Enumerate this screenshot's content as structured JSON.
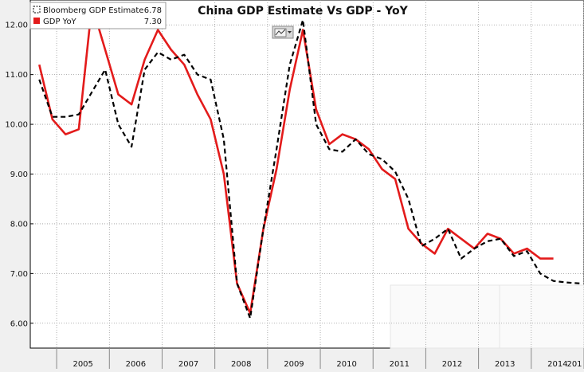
{
  "chart_data": {
    "type": "line",
    "title": "China GDP Estimate Vs GDP - YoY",
    "xlabel": "",
    "ylabel": "",
    "ylim": [
      5.5,
      12.5
    ],
    "xlim": [
      2004.5,
      2015.0
    ],
    "y_ticks": [
      "6.00",
      "7.00",
      "8.00",
      "9.00",
      "10.00",
      "11.00",
      "12.00"
    ],
    "x_ticks": [
      "2005",
      "2006",
      "2007",
      "2008",
      "2009",
      "2010",
      "2011",
      "2012",
      "2013",
      "2014",
      "201"
    ],
    "grid": true,
    "legend_position": "top-left",
    "series": [
      {
        "name": "Bloomberg GDP Estimate",
        "last_value": "6.78",
        "style": "dashed",
        "color": "#000000",
        "x": [
          2004.67,
          2004.92,
          2005.17,
          2005.42,
          2005.67,
          2005.92,
          2006.17,
          2006.42,
          2006.67,
          2006.92,
          2007.17,
          2007.42,
          2007.67,
          2007.92,
          2008.17,
          2008.42,
          2008.67,
          2008.92,
          2009.17,
          2009.42,
          2009.67,
          2009.92,
          2010.17,
          2010.42,
          2010.67,
          2010.92,
          2011.17,
          2011.42,
          2011.67,
          2011.92,
          2012.17,
          2012.42,
          2012.67,
          2012.92,
          2013.17,
          2013.42,
          2013.67,
          2013.92,
          2014.17,
          2014.42,
          2014.67,
          2014.92
        ],
        "values": [
          10.9,
          10.15,
          10.15,
          10.2,
          10.65,
          11.1,
          10.0,
          9.55,
          11.1,
          11.45,
          11.3,
          11.4,
          11.0,
          10.9,
          9.7,
          6.8,
          6.1,
          7.9,
          9.5,
          11.2,
          12.1,
          10.0,
          9.5,
          9.45,
          9.7,
          9.4,
          9.3,
          9.05,
          8.5,
          7.55,
          7.7,
          7.9,
          7.3,
          7.5,
          7.65,
          7.7,
          7.35,
          7.45,
          7.0,
          6.85,
          6.82,
          6.8
        ]
      },
      {
        "name": "GDP YoY",
        "last_value": "7.30",
        "style": "solid",
        "color": "#e31b1b",
        "x": [
          2004.67,
          2004.92,
          2005.17,
          2005.42,
          2005.67,
          2005.92,
          2006.17,
          2006.42,
          2006.67,
          2006.92,
          2007.17,
          2007.42,
          2007.67,
          2007.92,
          2008.17,
          2008.42,
          2008.67,
          2008.92,
          2009.17,
          2009.42,
          2009.67,
          2009.92,
          2010.17,
          2010.42,
          2010.67,
          2010.92,
          2011.17,
          2011.42,
          2011.67,
          2011.92,
          2012.17,
          2012.42,
          2012.67,
          2012.92,
          2013.17,
          2013.42,
          2013.67,
          2013.92,
          2014.17,
          2014.42
        ],
        "values": [
          11.2,
          10.1,
          9.8,
          9.9,
          12.4,
          11.5,
          10.6,
          10.4,
          11.3,
          11.9,
          11.5,
          11.2,
          10.6,
          10.1,
          9.0,
          6.8,
          6.2,
          7.9,
          9.1,
          10.7,
          11.9,
          10.3,
          9.6,
          9.8,
          9.7,
          9.5,
          9.1,
          8.9,
          7.9,
          7.6,
          7.4,
          7.9,
          7.7,
          7.5,
          7.8,
          7.7,
          7.4,
          7.5,
          7.3,
          7.3
        ]
      }
    ]
  },
  "toolbar": {
    "chart_type_icon": "line-chart-icon"
  }
}
